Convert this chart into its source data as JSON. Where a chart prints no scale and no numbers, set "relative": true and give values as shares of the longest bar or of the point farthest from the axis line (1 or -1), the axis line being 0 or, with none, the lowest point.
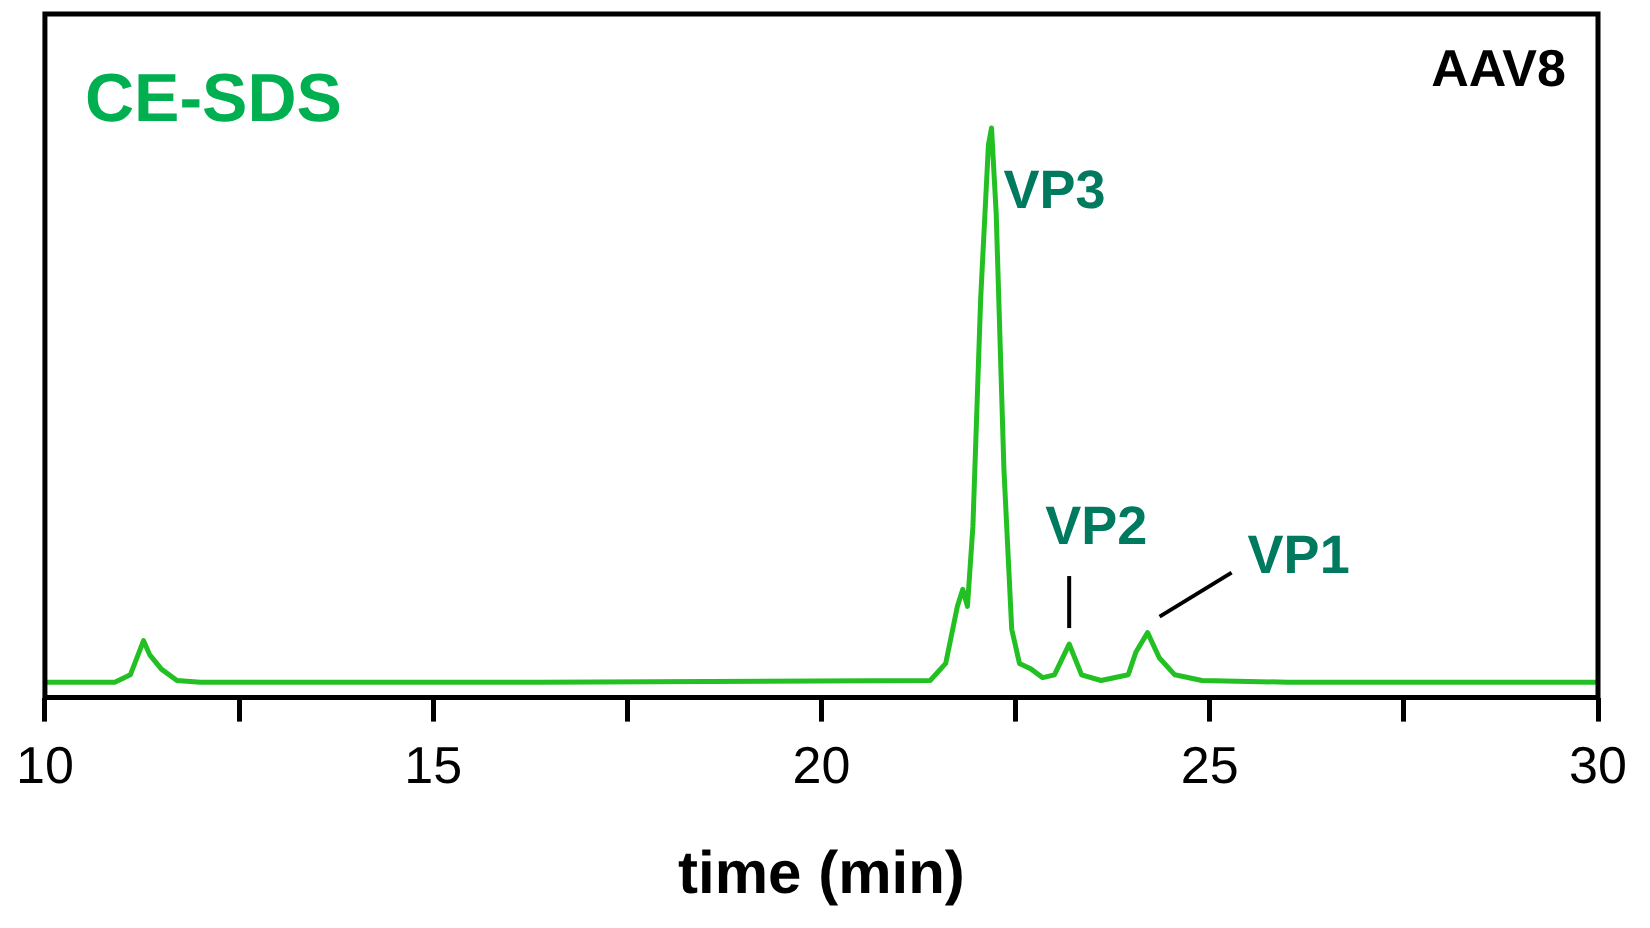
{
  "chart_data": {
    "type": "line",
    "relative": true,
    "xlabel": "time (min)",
    "color": "#22c022",
    "xlim": [
      10,
      30
    ],
    "xticks": [
      10,
      {
        "value": 12.5,
        "label": null
      },
      15,
      {
        "value": 17.5,
        "label": null
      },
      20,
      {
        "value": 22.5,
        "label": null
      },
      25,
      {
        "value": 27.5,
        "label": null
      },
      30
    ],
    "x": [
      10,
      10.9,
      11.1,
      11.27,
      11.35,
      11.5,
      11.7,
      12,
      16.4,
      21.4,
      21.6,
      21.75,
      21.82,
      21.88,
      21.95,
      22.05,
      22.15,
      22.19,
      22.25,
      22.35,
      22.45,
      22.55,
      22.7,
      22.85,
      23.0,
      23.19,
      23.35,
      23.6,
      23.95,
      24.05,
      24.2,
      24.35,
      24.55,
      24.9,
      26,
      30
    ],
    "values": [
      0.027,
      0.027,
      0.04,
      0.1,
      0.075,
      0.05,
      0.03,
      0.027,
      0.027,
      0.03,
      0.06,
      0.16,
      0.19,
      0.16,
      0.3,
      0.7,
      0.97,
      1.0,
      0.85,
      0.4,
      0.12,
      0.06,
      0.05,
      0.035,
      0.04,
      0.094,
      0.04,
      0.03,
      0.04,
      0.08,
      0.114,
      0.07,
      0.04,
      0.03,
      0.027,
      0.027
    ],
    "grid": false,
    "legend": false,
    "marker": "none",
    "line_style": "solid",
    "annotations": [
      "CE-SDS",
      "AAV8",
      {
        "text": "VP3",
        "x": 22.19,
        "y": 1.0
      },
      {
        "text": "VP2",
        "x": 23.19,
        "y": 0.094
      },
      {
        "text": "VP1",
        "x": 24.2,
        "y": 0.114
      }
    ]
  }
}
